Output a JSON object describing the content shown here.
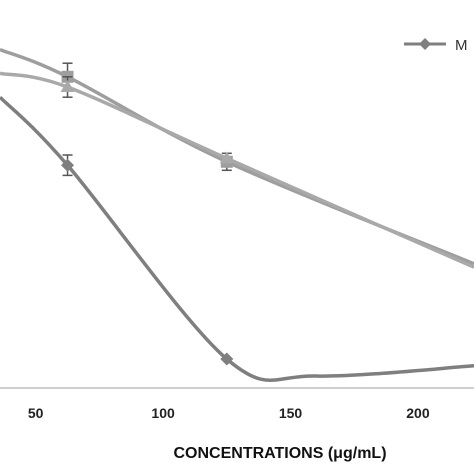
{
  "chart_data": {
    "type": "line",
    "title": "",
    "xlabel": "CONCENTRATIONS (μg/mL)",
    "ylabel": "",
    "xlim": [
      36,
      222
    ],
    "ylim": [
      0,
      1
    ],
    "x_ticks": [
      50,
      100,
      150,
      200
    ],
    "grid": false,
    "legend_position": "top-right",
    "legend_visible_text": "M",
    "series": [
      {
        "marker": "diamond",
        "color": "#7f7f7f",
        "points": [
          [
            36,
            0.82
          ],
          [
            62.5,
            0.62
          ],
          [
            125,
            0.05
          ],
          [
            160,
            0.0
          ],
          [
            222,
            0.03
          ]
        ],
        "error_bars": [
          0,
          0.03,
          0,
          0,
          0
        ]
      },
      {
        "marker": "square",
        "color": "#9e9e9e",
        "points": [
          [
            36,
            0.96
          ],
          [
            62.5,
            0.88
          ],
          [
            125,
            0.63
          ],
          [
            222,
            0.33
          ]
        ],
        "error_bars": [
          0,
          0.04,
          0.025,
          0
        ]
      },
      {
        "marker": "triangle",
        "color": "#a9a9a9",
        "points": [
          [
            36,
            0.89
          ],
          [
            62.5,
            0.85
          ],
          [
            125,
            0.64
          ],
          [
            222,
            0.32
          ]
        ],
        "error_bars": [
          0,
          0.03,
          0,
          0
        ]
      }
    ]
  }
}
